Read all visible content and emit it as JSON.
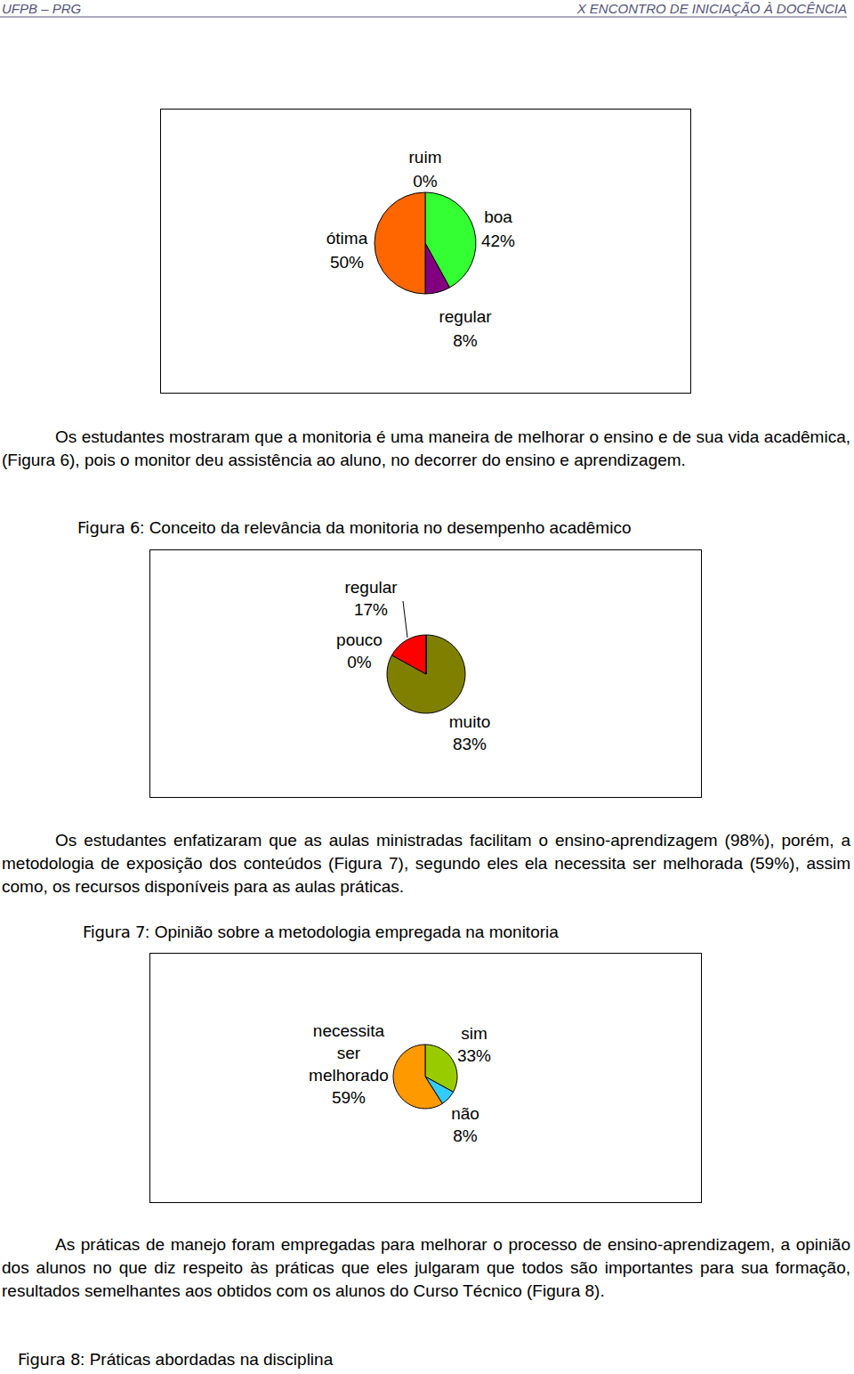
{
  "document": {
    "header": {
      "left": "UFPB – PRG",
      "right": "X ENCONTRO DE INICIAÇÃO À DOCÊNCIA"
    },
    "paragraphs": [
      "Os estudantes mostraram que a monitoria é uma maneira de melhorar o ensino e de sua vida acadêmica, (Figura 6), pois o monitor deu assistência ao aluno, no decorrer do ensino e aprendizagem.",
      "Os estudantes enfatizaram que as aulas ministradas facilitam o ensino-aprendizagem (98%), porém, a metodologia de exposição dos conteúdos (Figura 7), segundo eles ela necessita ser melhorada (59%), assim como, os recursos disponíveis para as aulas práticas.",
      "As práticas de manejo foram empregadas para melhorar o processo de ensino-aprendizagem, a opinião dos alunos no que diz respeito às práticas que eles julgaram que todos são importantes para sua formação, resultados semelhantes aos obtidos com os alunos do Curso Técnico (Figura 8)."
    ],
    "captions": [
      {
        "label": "Figura 6",
        "text": ": Conceito da relevância da monitoria no desempenho acadêmico"
      },
      {
        "label": "Figura 7",
        "text": ": Opinião sobre a metodologia empregada na monitoria"
      },
      {
        "label": "Figura 8",
        "text": ": Práticas abordadas na disciplina"
      }
    ]
  },
  "chart_data": [
    {
      "type": "pie",
      "categories": [
        "ruim",
        "boa",
        "regular",
        "ótima"
      ],
      "values": [
        0,
        42,
        8,
        50
      ],
      "value_labels": [
        "0%",
        "42%",
        "8%",
        "50%"
      ],
      "colors": [
        "#3366ff",
        "#33ff33",
        "#800080",
        "#ff6600"
      ],
      "data_labels": true
    },
    {
      "type": "pie",
      "categories": [
        "muito",
        "regular",
        "pouco"
      ],
      "values": [
        83,
        17,
        0
      ],
      "value_labels": [
        "83%",
        "17%",
        "0%"
      ],
      "colors": [
        "#808000",
        "#ff0000",
        "#000080"
      ],
      "data_labels": true
    },
    {
      "type": "pie",
      "categories": [
        "sim",
        "não",
        "necessita ser melhorado"
      ],
      "values": [
        33,
        8,
        59
      ],
      "value_labels": [
        "33%",
        "8%",
        "59%"
      ],
      "colors": [
        "#99cc00",
        "#33ccff",
        "#ff9900"
      ],
      "data_labels": true
    }
  ]
}
